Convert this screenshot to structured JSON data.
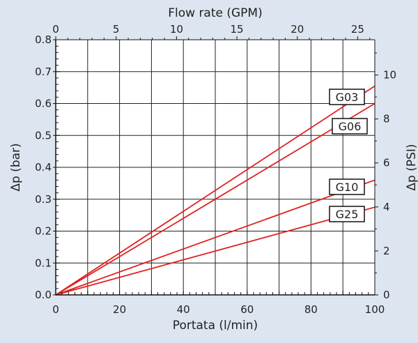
{
  "chart_data": {
    "type": "line",
    "bottom_axis": {
      "label": "Portata (l/min)",
      "range": [
        0,
        100
      ],
      "ticks": [
        0,
        20,
        40,
        60,
        80,
        100
      ],
      "minor_step": 2
    },
    "top_axis": {
      "label": "Flow rate (GPM)",
      "ticks": [
        0,
        5,
        10,
        15,
        20,
        25
      ]
    },
    "left_axis": {
      "label": "Δp (bar)",
      "range": [
        0,
        0.8
      ],
      "ticks": [
        "0.0",
        "0.1",
        "0.2",
        "0.3",
        "0.4",
        "0.5",
        "0.6",
        "0.7",
        "0.8"
      ]
    },
    "right_axis": {
      "label": "Δp (PSI)",
      "ticks": [
        0,
        2,
        4,
        6,
        8,
        10
      ]
    },
    "grid": true,
    "series": [
      {
        "name": "G03",
        "x": [
          0,
          100
        ],
        "y": [
          0,
          0.655
        ],
        "color": "#e02020"
      },
      {
        "name": "G06",
        "x": [
          0,
          100
        ],
        "y": [
          0,
          0.6
        ],
        "color": "#e02020"
      },
      {
        "name": "G10",
        "x": [
          0,
          100
        ],
        "y": [
          0,
          0.36
        ],
        "color": "#e02020"
      },
      {
        "name": "G25",
        "x": [
          0,
          100
        ],
        "y": [
          0,
          0.275
        ],
        "color": "#e02020"
      }
    ]
  }
}
